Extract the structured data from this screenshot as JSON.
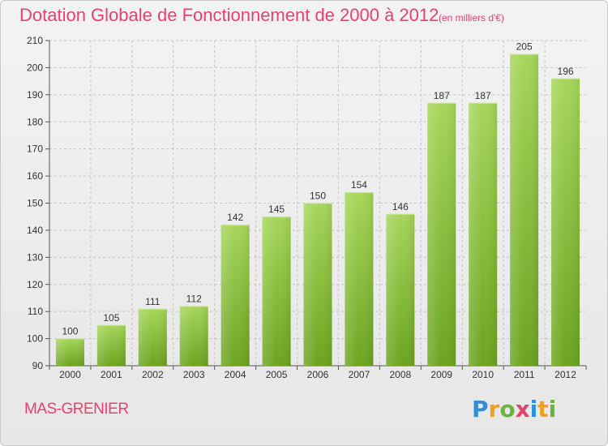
{
  "header": {
    "title": "Dotation Globale de Fonctionnement de 2000 à 2012",
    "subtitle": "(en milliers d'€)"
  },
  "footer": {
    "commune": "MAS-GRENIER",
    "logo_letters": [
      {
        "ch": "P",
        "color": "#2f8fd8"
      },
      {
        "ch": "r",
        "color": "#f0a020"
      },
      {
        "ch": "o",
        "color": "#6cb33f"
      },
      {
        "ch": "x",
        "color": "#e8416f"
      },
      {
        "ch": "i",
        "color": "#2f8fd8"
      },
      {
        "ch": "t",
        "color": "#f0a020"
      },
      {
        "ch": "i",
        "color": "#6cb33f"
      }
    ]
  },
  "colors": {
    "bar_top": "#a6d65a",
    "bar_bottom": "#6ba420",
    "accent": "#e8416f"
  },
  "chart_data": {
    "type": "bar",
    "categories": [
      "2000",
      "2001",
      "2002",
      "2003",
      "2004",
      "2005",
      "2006",
      "2007",
      "2008",
      "2009",
      "2010",
      "2011",
      "2012"
    ],
    "values": [
      100,
      105,
      111,
      112,
      142,
      145,
      150,
      154,
      146,
      187,
      187,
      205,
      196
    ],
    "ylim": [
      90,
      210
    ],
    "yticks": [
      90,
      100,
      110,
      120,
      130,
      140,
      150,
      160,
      170,
      180,
      190,
      200,
      210
    ],
    "grid": true,
    "data_labels": true
  }
}
